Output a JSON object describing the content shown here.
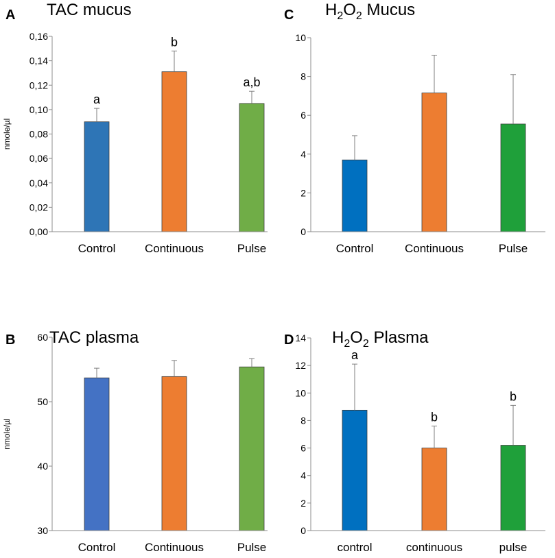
{
  "chart_data": [
    {
      "panel": "A",
      "type": "bar",
      "title": "TAC mucus",
      "ylabel": "nmole/µl",
      "xlabel": "",
      "ylim": [
        0,
        0.16
      ],
      "yticks": [
        "0,00",
        "0,02",
        "0,04",
        "0,06",
        "0,08",
        "0,10",
        "0,12",
        "0,14",
        "0,16"
      ],
      "categories": [
        "Control",
        "Continuous",
        "Pulse"
      ],
      "values": [
        0.09,
        0.131,
        0.105
      ],
      "errors": [
        0.011,
        0.017,
        0.01
      ],
      "annotations": [
        "a",
        "b",
        "a,b"
      ],
      "colors": [
        "#2E75B6",
        "#ED7D31",
        "#70AD47"
      ]
    },
    {
      "panel": "B",
      "type": "bar",
      "title": "TAC plasma",
      "ylabel": "nmole/µl",
      "xlabel": "",
      "ylim": [
        30,
        60
      ],
      "yticks": [
        "30",
        "40",
        "50",
        "60"
      ],
      "categories": [
        "Control",
        "Continuous",
        "Pulse"
      ],
      "values": [
        53.7,
        53.9,
        55.4
      ],
      "errors": [
        1.5,
        2.5,
        1.3
      ],
      "annotations": [
        "",
        "",
        ""
      ],
      "colors": [
        "#4472C4",
        "#ED7D31",
        "#70AD47"
      ]
    },
    {
      "panel": "C",
      "type": "bar",
      "title": "H2O2 Mucus",
      "title_parts": {
        "main": "H",
        "sub1": "2",
        "mid": "O",
        "sub2": "2",
        "rest": " Mucus"
      },
      "ylabel": "",
      "xlabel": "",
      "ylim": [
        0,
        10
      ],
      "yticks": [
        "0",
        "2",
        "4",
        "6",
        "8",
        "10"
      ],
      "categories": [
        "Control",
        "Continuous",
        "Pulse"
      ],
      "values": [
        3.7,
        7.15,
        5.55
      ],
      "errors": [
        1.25,
        1.95,
        2.55
      ],
      "annotations": [
        "",
        "",
        ""
      ],
      "colors": [
        "#0070C0",
        "#ED7D31",
        "#1FA03A"
      ]
    },
    {
      "panel": "D",
      "type": "bar",
      "title": "H2O2 Plasma",
      "title_parts": {
        "main": "H",
        "sub1": "2",
        "mid": "O",
        "sub2": "2",
        "rest": " Plasma"
      },
      "ylabel": "",
      "xlabel": "",
      "ylim": [
        0,
        14
      ],
      "yticks": [
        "0",
        "2",
        "4",
        "6",
        "8",
        "10",
        "12",
        "14"
      ],
      "categories": [
        "control",
        "continuous",
        "pulse"
      ],
      "values": [
        8.75,
        6.0,
        6.2
      ],
      "errors": [
        3.35,
        1.6,
        2.9
      ],
      "annotations": [
        "a",
        "b",
        "b"
      ],
      "colors": [
        "#0070C0",
        "#ED7D31",
        "#1FA03A"
      ]
    }
  ]
}
